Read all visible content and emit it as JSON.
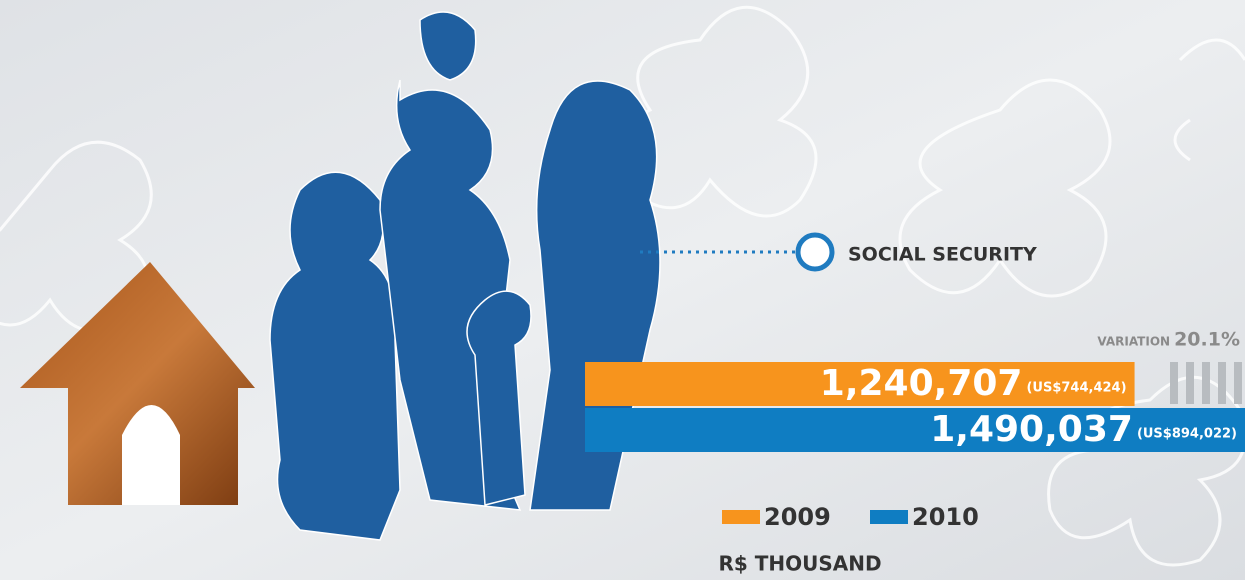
{
  "chart_data": {
    "type": "bar",
    "orientation": "horizontal",
    "title": "SOCIAL SECURITY",
    "variation_title": "VARIATION",
    "variation": {
      "value": 20.1,
      "label": "20.1%"
    },
    "series": [
      {
        "name": "2009",
        "color": "#f7941d",
        "values": [
          1240707
        ],
        "value_labels": [
          "1,240,707"
        ],
        "usd_labels": [
          "(US$744,424)"
        ]
      },
      {
        "name": "2010",
        "color": "#0f7dc2",
        "values": [
          1490037
        ],
        "value_labels": [
          "1,490,037"
        ],
        "usd_labels": [
          "(US$894,022)"
        ]
      }
    ],
    "unit_label": "R$ THOUSAND"
  }
}
